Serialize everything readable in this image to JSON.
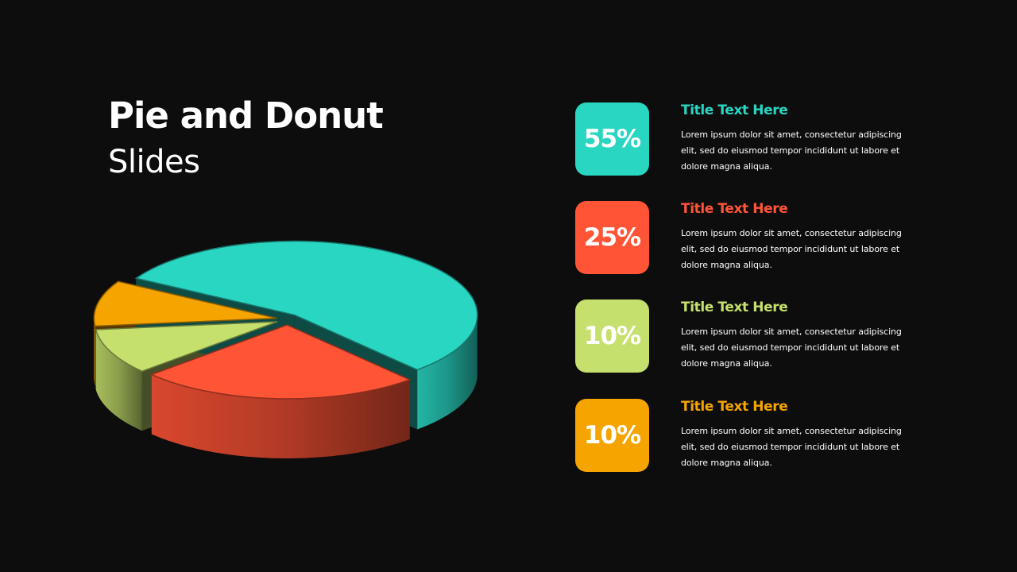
{
  "slide": {
    "title": "Pie and Donut",
    "subtitle": "Slides"
  },
  "chart_data": {
    "type": "pie",
    "style": "3d-exploded",
    "slices": [
      {
        "label": "55%",
        "value": 55,
        "color": "#29d6c2",
        "title": "Title Text Here",
        "description": "Lorem ipsum dolor sit amet, consectetur adipiscing elit, sed do eiusmod tempor incididunt ut labore et dolore magna aliqua."
      },
      {
        "label": "25%",
        "value": 25,
        "color": "#ff5436",
        "title": "Title Text Here",
        "description": "Lorem ipsum dolor sit amet, consectetur adipiscing elit, sed do eiusmod tempor incididunt ut labore et dolore magna aliqua."
      },
      {
        "label": "10%",
        "value": 10,
        "color": "#c5e06c",
        "title": "Title Text Here",
        "description": "Lorem ipsum dolor sit amet, consectetur adipiscing elit, sed do eiusmod tempor incididunt ut labore et dolore magna aliqua."
      },
      {
        "label": "10%",
        "value": 10,
        "color": "#f5a400",
        "title": "Title Text Here",
        "description": "Lorem ipsum dolor sit amet, consectetur adipiscing elit, sed do eiusmod tempor incididunt ut labore et dolore magna aliqua."
      }
    ]
  }
}
